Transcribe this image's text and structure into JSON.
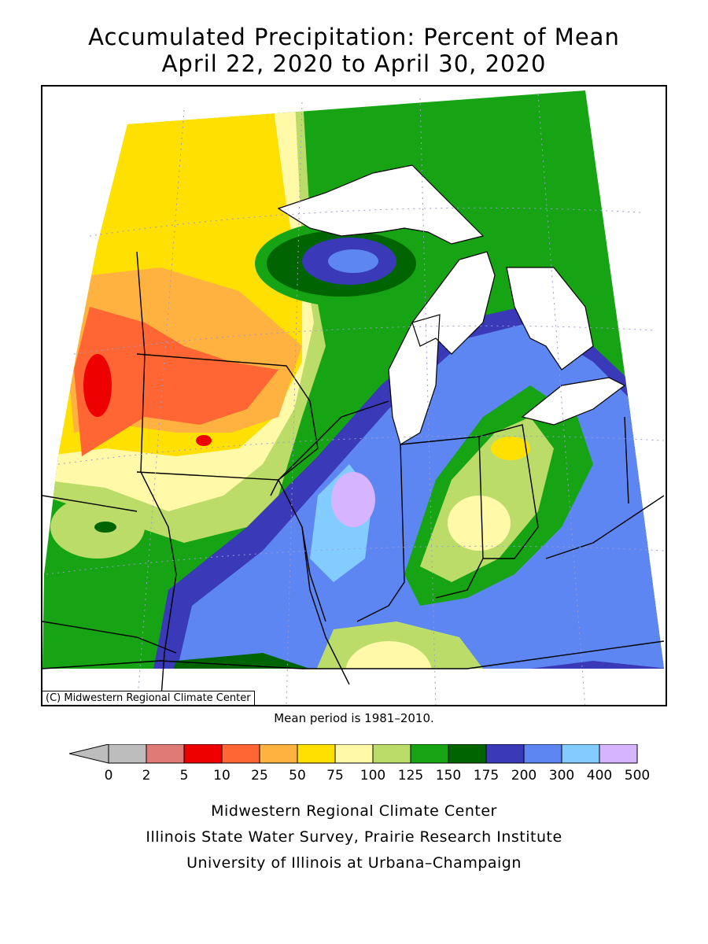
{
  "title": {
    "line1": "Accumulated Precipitation: Percent of Mean",
    "line2": "April 22, 2020 to April 30, 2020"
  },
  "map": {
    "copyright": "(C) Midwestern Regional Climate Center",
    "mean_note": "Mean period is 1981–2010.",
    "water_color": "#ffffff",
    "boundary_color": "#000000"
  },
  "legend": {
    "ticks": [
      "0",
      "2",
      "5",
      "10",
      "25",
      "50",
      "75",
      "100",
      "125",
      "150",
      "175",
      "200",
      "300",
      "400",
      "500"
    ],
    "colors": [
      "#bdbdbd",
      "#e07a76",
      "#ee0000",
      "#ff6633",
      "#ffb23f",
      "#ffe000",
      "#fff9a8",
      "#bcdc6a",
      "#16a314",
      "#006400",
      "#3a3ab8",
      "#5d86f3",
      "#82ccff",
      "#d7b4ff"
    ]
  },
  "footer": {
    "line1": "Midwestern Regional Climate Center",
    "line2": "Illinois State Water Survey, Prairie Research Institute",
    "line3": "University of Illinois at Urbana–Champaign"
  }
}
